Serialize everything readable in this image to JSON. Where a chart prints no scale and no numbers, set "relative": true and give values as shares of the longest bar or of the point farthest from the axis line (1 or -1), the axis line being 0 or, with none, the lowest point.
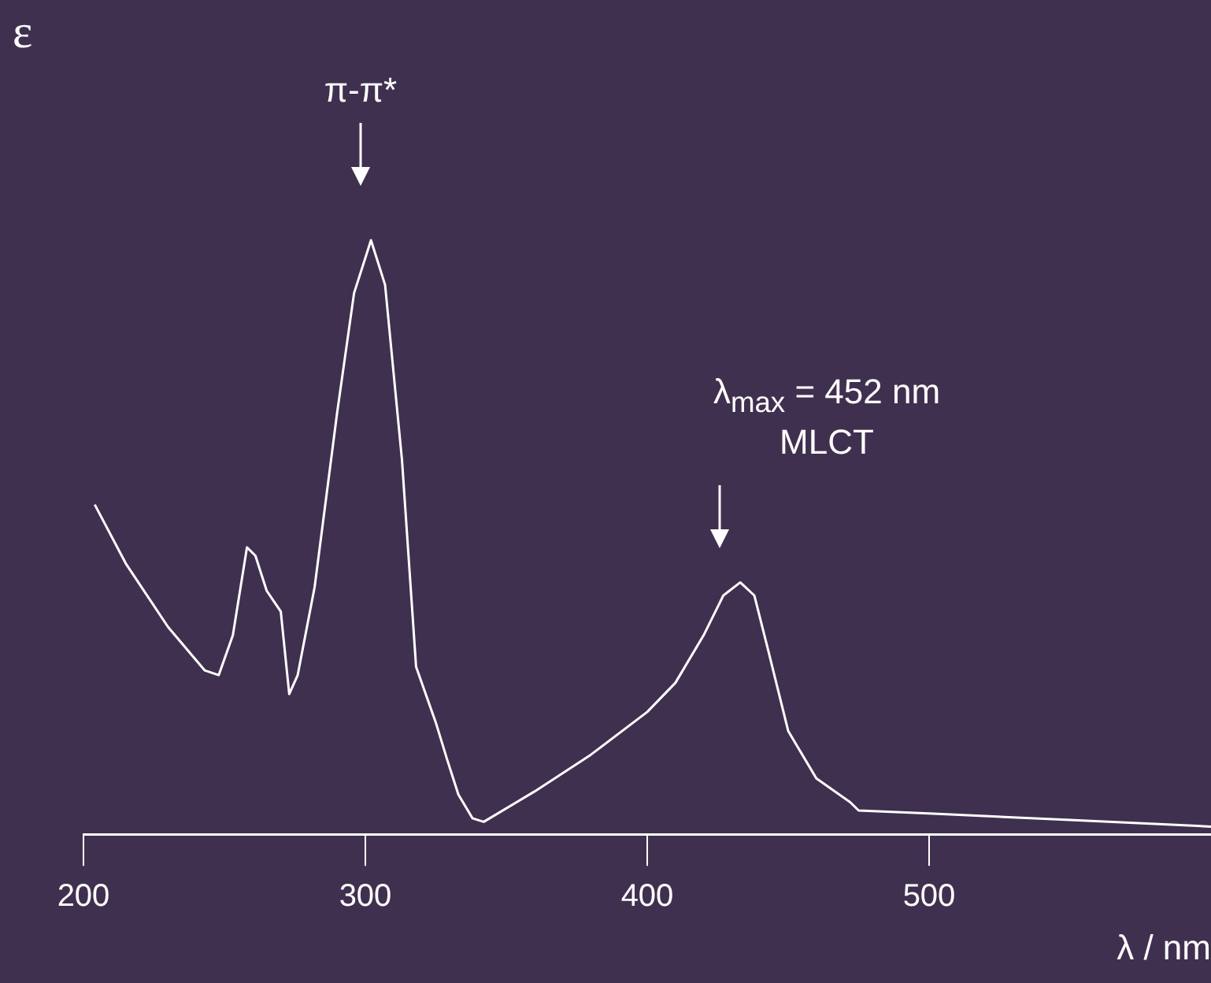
{
  "chart_data": {
    "type": "line",
    "relative": true,
    "xlabel": "λ / nm",
    "ylabel": "ε",
    "color": "#ffffff",
    "xlim": [
      200,
      600
    ],
    "xticks": [
      200,
      300,
      400,
      500
    ],
    "grid": false,
    "legend": false,
    "marker": "none",
    "line_style": "solid",
    "x": [
      204,
      215,
      230,
      243,
      248,
      253,
      258,
      261,
      265,
      270,
      273,
      276,
      282,
      290,
      296,
      302,
      307,
      313,
      318,
      325,
      329,
      333,
      338,
      342,
      360,
      380,
      400,
      410,
      420,
      427,
      433,
      438,
      443,
      450,
      460,
      472,
      475,
      500,
      550,
      600
    ],
    "values": [
      0.555,
      0.456,
      0.349,
      0.276,
      0.268,
      0.335,
      0.483,
      0.469,
      0.41,
      0.375,
      0.236,
      0.268,
      0.416,
      0.71,
      0.911,
      1,
      0.925,
      0.63,
      0.282,
      0.188,
      0.126,
      0.067,
      0.027,
      0.021,
      0.072,
      0.134,
      0.206,
      0.255,
      0.335,
      0.402,
      0.424,
      0.402,
      0.308,
      0.174,
      0.094,
      0.054,
      0.04,
      0.035,
      0.024,
      0.013
    ],
    "annotations": [
      "π-π*",
      "λ$_{max}$ = 452 nm\nMLCT"
    ]
  }
}
